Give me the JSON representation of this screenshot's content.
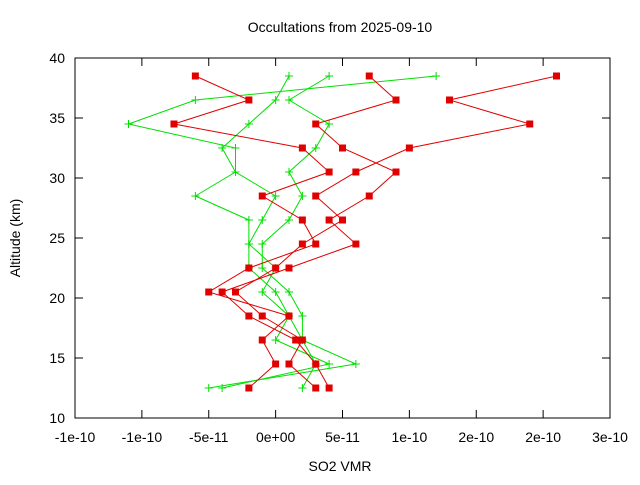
{
  "chart_data": {
    "type": "line",
    "title": "Occultations from 2025-09-10",
    "x_label": "SO2 VMR",
    "y_label": "Altitude (km)",
    "xlim": [
      -1.5e-10,
      2.5e-10
    ],
    "ylim": [
      10,
      40
    ],
    "xticks": [
      {
        "value": -1.5e-10,
        "label": "-1e-10"
      },
      {
        "value": -1e-10,
        "label": "-1e-10"
      },
      {
        "value": -5e-11,
        "label": "-5e-11"
      },
      {
        "value": 0,
        "label": "0e+00"
      },
      {
        "value": 5e-11,
        "label": "5e-11"
      },
      {
        "value": 1e-10,
        "label": "1e-10"
      },
      {
        "value": 1.5e-10,
        "label": "2e-10"
      },
      {
        "value": 2e-10,
        "label": "2e-10"
      },
      {
        "value": 2.5e-10,
        "label": "3e-10"
      }
    ],
    "yticks": [
      10,
      15,
      20,
      25,
      30,
      35,
      40
    ],
    "y": [
      12.5,
      14.5,
      16.5,
      18.5,
      20.5,
      22.5,
      24.5,
      26.5,
      28.5,
      30.5,
      32.5,
      34.5,
      36.5,
      38.5
    ],
    "series": [
      {
        "color": "#00e000",
        "marker": "plus",
        "values": [
          -5e-11,
          6e-11,
          2e-11,
          1e-11,
          0,
          -2e-11,
          -2e-11,
          -2e-11,
          -6e-11,
          -3e-11,
          -3e-11,
          -1.1e-10,
          -6e-11,
          1.2e-10
        ]
      },
      {
        "color": "#00e000",
        "marker": "plus",
        "values": [
          -4e-11,
          4e-11,
          0,
          1e-11,
          -1e-11,
          0,
          -2e-11,
          -1e-11,
          0,
          -3e-11,
          -4e-11,
          -2e-11,
          0,
          1e-11
        ]
      },
      {
        "color": "#00e000",
        "marker": "plus",
        "values": [
          2e-11,
          3e-11,
          2e-11,
          2e-11,
          1e-11,
          -1e-11,
          -1e-11,
          1e-11,
          2e-11,
          1e-11,
          3e-11,
          4e-11,
          1e-11,
          4e-11
        ]
      },
      {
        "color": "#e00000",
        "marker": "square",
        "values": [
          3e-11,
          1e-11,
          2e-11,
          -1e-11,
          -3e-11,
          0,
          2e-11,
          5e-11,
          3e-11,
          6e-11,
          1e-10,
          1.9e-10,
          1.3e-10,
          2.1e-10
        ]
      },
      {
        "color": "#e00000",
        "marker": "square",
        "values": [
          -2e-11,
          0,
          -1e-11,
          1e-11,
          -5e-11,
          -2e-11,
          3e-11,
          2e-11,
          -1e-11,
          4e-11,
          2e-11,
          -7.6e-11,
          -2e-11,
          -6e-11
        ]
      },
      {
        "color": "#e00000",
        "marker": "square",
        "values": [
          4e-11,
          3e-11,
          1.5e-11,
          -2e-11,
          -4e-11,
          1e-11,
          6e-11,
          4e-11,
          7e-11,
          9e-11,
          5e-11,
          3e-11,
          9e-11,
          7e-11
        ]
      }
    ]
  }
}
